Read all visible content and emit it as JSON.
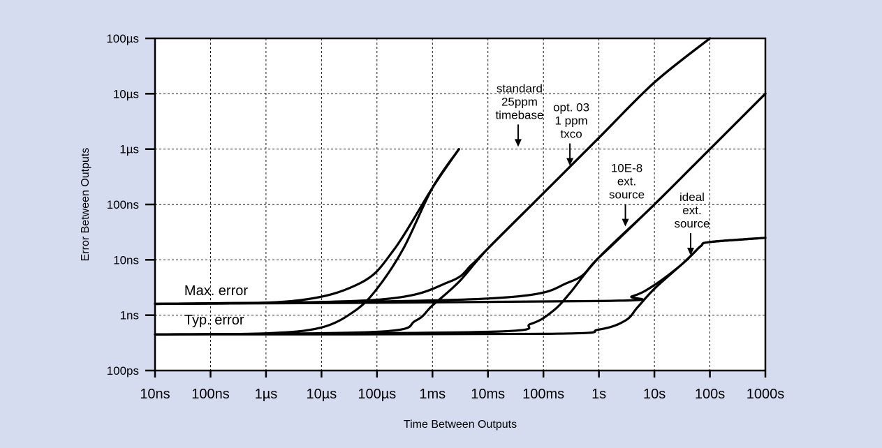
{
  "chart_data": {
    "type": "line",
    "title": "",
    "xlabel": "Time Between Outputs",
    "ylabel": "Error Between Outputs",
    "x_scale": "log",
    "y_scale": "log",
    "xlim_seconds": [
      1e-08,
      1000
    ],
    "ylim_seconds": [
      1e-10,
      0.0001
    ],
    "grid": true,
    "background_color": "#d6dcf0",
    "plot_background_color": "#ffffff",
    "line_color": "#000000",
    "x_tick_labels": [
      "10ns",
      "100ns",
      "1µs",
      "10µs",
      "100µs",
      "1ms",
      "10ms",
      "100ms",
      "1s",
      "10s",
      "100s",
      "1000s"
    ],
    "x_tick_values_seconds": [
      1e-08,
      1e-07,
      1e-06,
      1e-05,
      0.0001,
      0.001,
      0.01,
      0.1,
      1,
      10,
      100,
      1000
    ],
    "y_tick_labels": [
      "100µs",
      "10µs",
      "1µs",
      "100ns",
      "10ns",
      "1ns",
      "100ps"
    ],
    "y_tick_values_seconds": [
      0.0001,
      1e-05,
      1e-06,
      1e-07,
      1e-08,
      1e-09,
      1e-10
    ],
    "series": [
      {
        "group": "max",
        "x": [
          1e-08,
          3e-06,
          5e-05,
          0.0002,
          0.001,
          0.003
        ],
        "y": [
          1.6e-09,
          1.8e-09,
          3.8e-09,
          1.5e-08,
          2e-07,
          1e-06
        ]
      },
      {
        "group": "max",
        "x": [
          1e-08,
          0.0001,
          0.002,
          0.005,
          0.01,
          0.1,
          1,
          10,
          100
        ],
        "y": [
          1.6e-09,
          1.9e-09,
          4e-09,
          8e-09,
          1.6e-08,
          1.6e-07,
          1.6e-06,
          1.6e-05,
          0.0001
        ]
      },
      {
        "group": "max",
        "x": [
          1e-08,
          0.01,
          0.3,
          1,
          10,
          100,
          1000
        ],
        "y": [
          1.6e-09,
          2e-09,
          4e-09,
          1.1e-08,
          1e-07,
          1e-06,
          1e-05
        ]
      },
      {
        "group": "max",
        "x": [
          1e-08,
          1,
          4,
          10,
          30,
          50,
          70,
          100,
          1000
        ],
        "y": [
          1.6e-09,
          1.8e-09,
          2.2e-09,
          3.5e-09,
          8e-09,
          1.3e-08,
          1.8e-08,
          2.1e-08,
          2.5e-08
        ]
      },
      {
        "group": "typ",
        "x": [
          1e-08,
          1e-06,
          1e-05,
          4e-05,
          0.0001,
          0.0003,
          0.001,
          0.003
        ],
        "y": [
          4.5e-10,
          4.7e-10,
          6e-10,
          1.2e-09,
          3e-09,
          1.6e-08,
          2e-07,
          1e-06
        ]
      },
      {
        "group": "typ",
        "x": [
          1e-08,
          0.0001,
          0.0005,
          0.001,
          0.003,
          0.01,
          0.1,
          1,
          10,
          100
        ],
        "y": [
          4.5e-10,
          5e-10,
          8e-10,
          1.5e-09,
          4e-09,
          1.6e-08,
          1.6e-07,
          1.6e-06,
          1.6e-05,
          0.0001
        ]
      },
      {
        "group": "typ",
        "x": [
          1e-08,
          0.01,
          0.06,
          0.15,
          0.3,
          1,
          10,
          100,
          1000
        ],
        "y": [
          4.5e-10,
          5e-10,
          7e-10,
          1.2e-09,
          2.5e-09,
          1.1e-08,
          1e-07,
          1e-06,
          1e-05
        ]
      },
      {
        "group": "typ",
        "x": [
          1e-08,
          0.1,
          1,
          3,
          5,
          10,
          30,
          50,
          70,
          100,
          1000
        ],
        "y": [
          4.5e-10,
          4.6e-10,
          5.5e-10,
          8e-10,
          1.4e-09,
          3e-09,
          8e-09,
          1.3e-08,
          1.8e-08,
          2.1e-08,
          2.5e-08
        ]
      }
    ],
    "text_labels": [
      {
        "text": "Max. error",
        "x": 3e-08,
        "y": 2.3e-09
      },
      {
        "text": "Typ. error",
        "x": 3e-08,
        "y": 6.8e-10
      }
    ],
    "annotations": [
      {
        "lines": [
          "standard",
          "25ppm",
          "timebase"
        ],
        "arrow_tip": [
          0.035,
          1.1e-06
        ]
      },
      {
        "lines": [
          "opt. 03",
          "1 ppm",
          "txco"
        ],
        "arrow_tip": [
          0.3,
          5e-07
        ]
      },
      {
        "lines": [
          "10E-8",
          "ext.",
          "source"
        ],
        "arrow_tip": [
          3,
          4e-08
        ]
      },
      {
        "lines": [
          "ideal",
          "ext.",
          "source"
        ],
        "arrow_tip": [
          45,
          1.2e-08
        ]
      }
    ]
  }
}
